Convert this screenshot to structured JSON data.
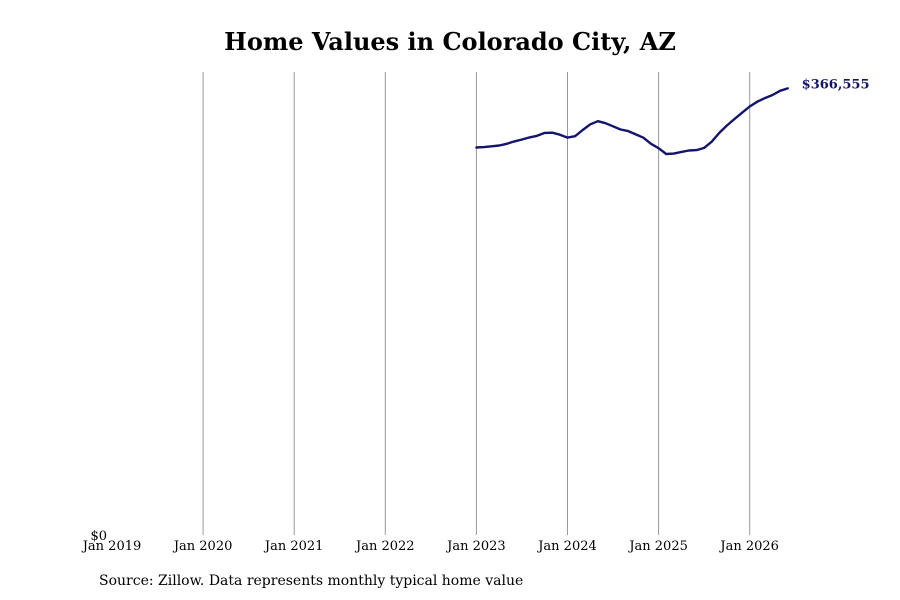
{
  "chart_data": {
    "type": "line",
    "title": "Home Values in Colorado City, AZ",
    "xlabel": "",
    "ylabel": "",
    "source": "Source: Zillow. Data represents monthly typical home value",
    "x_tick_labels": [
      "Jan 2019",
      "Jan 2020",
      "Jan 2021",
      "Jan 2022",
      "Jan 2023",
      "Jan 2024",
      "Jan 2025",
      "Jan 2026"
    ],
    "y_tick_labels": [
      "$0"
    ],
    "ylim": [
      0,
      380000
    ],
    "grid": "vertical",
    "end_label": "$366,555",
    "colors": {
      "line": "#14146b",
      "grid": "#999999",
      "end_label": "#14146b"
    },
    "series": [
      {
        "x": [
          "2023-01",
          "2023-02",
          "2023-03",
          "2023-04",
          "2023-05",
          "2023-06",
          "2023-07",
          "2023-08",
          "2023-09",
          "2023-10",
          "2023-11",
          "2023-12",
          "2024-01",
          "2024-02",
          "2024-03",
          "2024-04",
          "2024-05",
          "2024-06",
          "2024-07",
          "2024-08",
          "2024-09",
          "2024-10",
          "2024-11",
          "2024-12",
          "2025-01",
          "2025-02",
          "2025-03",
          "2025-04",
          "2025-05",
          "2025-06",
          "2025-07",
          "2025-08",
          "2025-09",
          "2025-10",
          "2025-11",
          "2025-12",
          "2026-01",
          "2026-02",
          "2026-03",
          "2026-04",
          "2026-05",
          "2026-06"
        ],
        "values": [
          318000,
          318400,
          319000,
          319700,
          321100,
          323000,
          324600,
          326300,
          327600,
          330000,
          330200,
          328500,
          326200,
          327300,
          332400,
          337100,
          339600,
          338000,
          335400,
          332800,
          331500,
          328800,
          326100,
          321100,
          317500,
          312700,
          313000,
          314400,
          315600,
          315900,
          317700,
          322800,
          330000,
          336100,
          341400,
          346600,
          351700,
          355600,
          358600,
          361100,
          364600,
          366555
        ]
      }
    ]
  }
}
